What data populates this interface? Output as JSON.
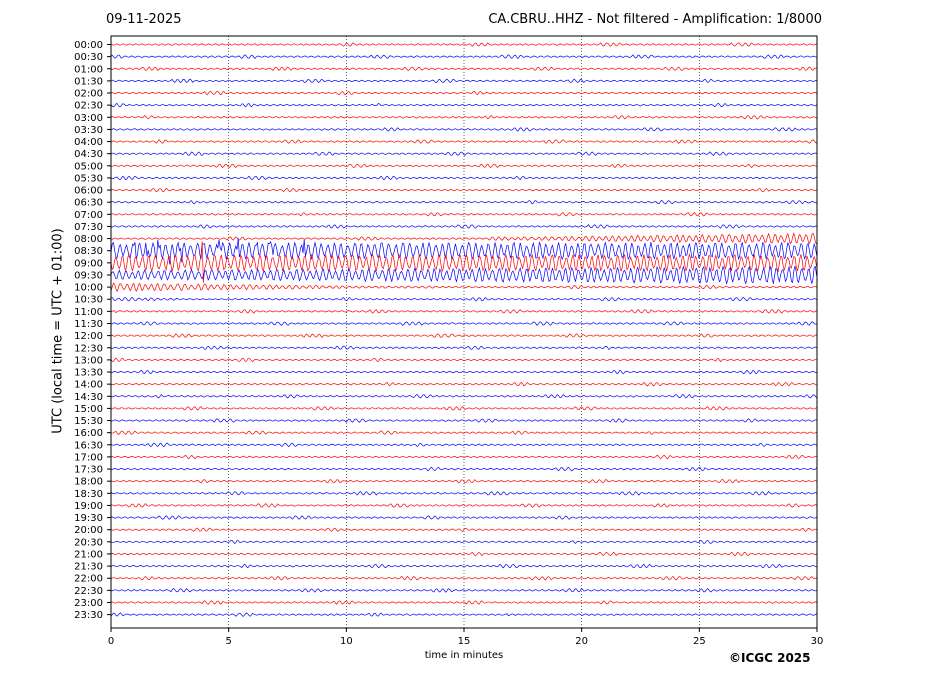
{
  "header": {
    "date": "09-11-2025",
    "title": "CA.CBRU..HHZ - Not filtered - Amplification: 1/8000"
  },
  "footer": {
    "credit": "©ICGC 2025"
  },
  "chart_data": {
    "type": "line",
    "chart_kind": "helicorder",
    "xlabel": "time in minutes",
    "ylabel": "UTC (local time = UTC + 01:00)",
    "xlim": [
      0,
      30
    ],
    "x_ticks": [
      0,
      5,
      10,
      15,
      20,
      25,
      30
    ],
    "grid": "vertical dotted lines at x ticks",
    "colors": {
      "even_row": "#ff0000",
      "odd_row": "#0000ff",
      "frame": "#000000"
    },
    "rows": [
      "00:00",
      "00:30",
      "01:00",
      "01:30",
      "02:00",
      "02:30",
      "03:00",
      "03:30",
      "04:00",
      "04:30",
      "05:00",
      "05:30",
      "06:00",
      "06:30",
      "07:00",
      "07:30",
      "08:00",
      "08:30",
      "09:00",
      "09:30",
      "10:00",
      "10:30",
      "11:00",
      "11:30",
      "12:00",
      "12:30",
      "13:00",
      "13:30",
      "14:00",
      "14:30",
      "15:00",
      "15:30",
      "16:00",
      "16:30",
      "17:00",
      "17:30",
      "18:00",
      "18:30",
      "19:00",
      "19:30",
      "20:00",
      "20:30",
      "21:00",
      "21:30",
      "22:00",
      "22:30",
      "23:00",
      "23:30"
    ],
    "activity": [
      {
        "row": "08:00",
        "x_start": 17,
        "x_end": 30,
        "amplitude": "moderate"
      },
      {
        "row": "08:30",
        "x_start": 0,
        "x_end": 30,
        "amplitude": "high"
      },
      {
        "row": "09:00",
        "x_start": 0,
        "x_end": 30,
        "amplitude": "high"
      },
      {
        "row": "09:30",
        "x_start": 0,
        "x_end": 30,
        "amplitude": "high"
      },
      {
        "row": "10:00",
        "x_start": 0,
        "x_end": 14,
        "amplitude": "moderate"
      },
      {
        "row": "10:30",
        "x_start": 0,
        "x_end": 5,
        "amplitude": "low"
      }
    ],
    "spikes": [
      {
        "row": "08:30",
        "x": [
          1.0,
          1.5,
          2.0,
          2.5,
          3.0,
          3.9,
          4.6,
          5.4,
          6.2,
          6.8,
          8.2
        ]
      },
      {
        "row": "09:00",
        "x": [
          3.9
        ]
      }
    ]
  }
}
